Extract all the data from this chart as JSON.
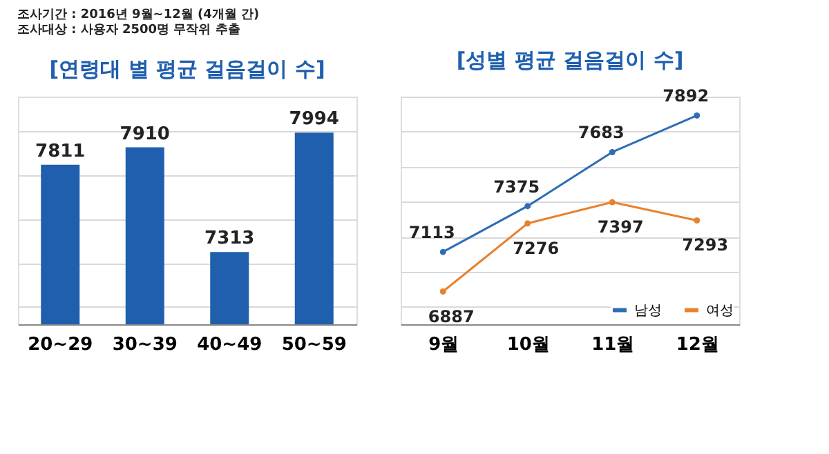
{
  "chart_data": [
    {
      "type": "bar",
      "title": "[연령대 별 평균 걸음걸이 수]",
      "categories": [
        "20~29",
        "30~39",
        "40~49",
        "50~59"
      ],
      "values": [
        7811,
        7910,
        7313,
        7994
      ],
      "color": "#1f5fae",
      "data_labels": true,
      "ylim": [
        6900,
        8200
      ],
      "yticks": [
        {
          "value": 7000,
          "label": null
        },
        {
          "value": 7250,
          "label": null
        },
        {
          "value": 7500,
          "label": null
        },
        {
          "value": 7750,
          "label": null
        },
        {
          "value": 8000,
          "label": null
        }
      ],
      "grid": "y",
      "tick_labels": "x",
      "annotations": [
        "조사기간 : 2016년 9월~12월 (4개월 간)",
        "조사대상 : 사용자 2500명 무작위 추출"
      ]
    },
    {
      "type": "line",
      "title": "[성별 평균 걸음걸이 수]",
      "categories": [
        "9월",
        "10월",
        "11월",
        "12월"
      ],
      "series": [
        {
          "name": "남성",
          "color": "#2e6db4",
          "values": [
            7113,
            7375,
            7683,
            7892
          ]
        },
        {
          "name": "여성",
          "color": "#e8822e",
          "values": [
            6887,
            7276,
            7397,
            7293
          ]
        }
      ],
      "data_labels": true,
      "ylim": [
        6700,
        8000
      ],
      "grid": "y",
      "tick_labels": "x",
      "marker": "circle",
      "legend": "bottom right"
    }
  ]
}
